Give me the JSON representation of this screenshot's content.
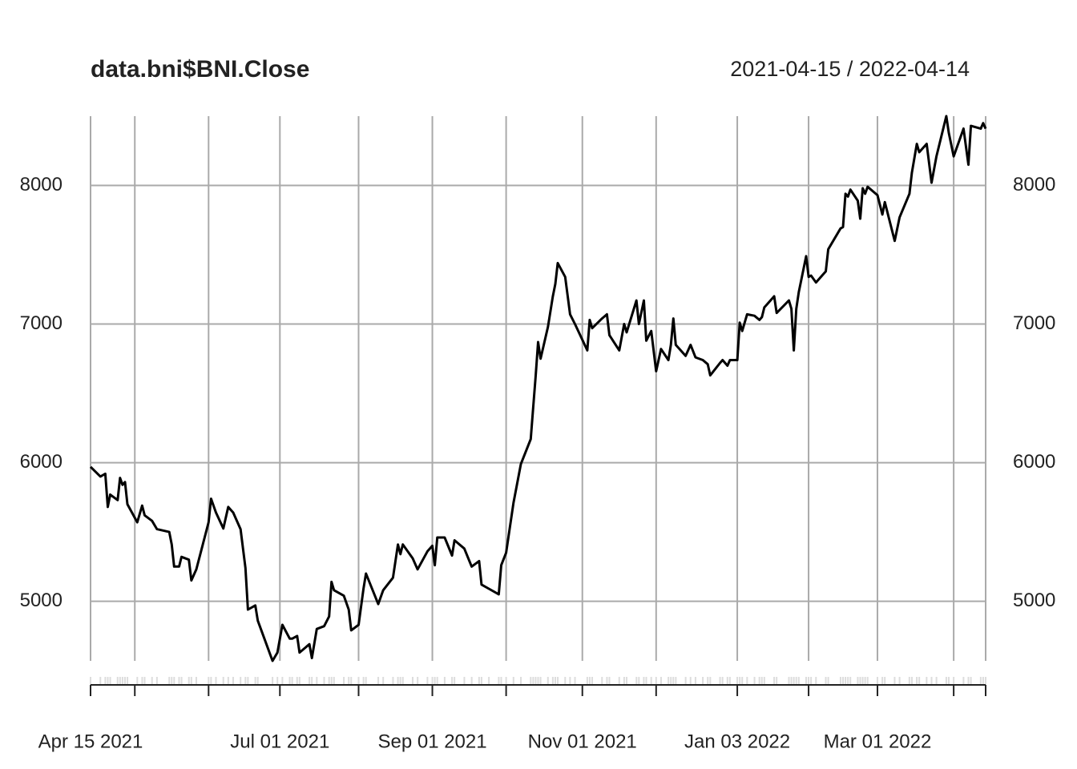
{
  "chart_data": {
    "type": "line",
    "title": "data.bni$BNI.Close",
    "subtitle": "2021-04-15 / 2022-04-14",
    "color": "#000000",
    "grid": true,
    "xlim": [
      "2021-04-15",
      "2022-04-14"
    ],
    "xticks": [
      {
        "value": "2021-04-15",
        "label": "Apr 15 2021"
      },
      {
        "value": "2021-07-01",
        "label": "Jul 01 2021"
      },
      {
        "value": "2021-09-01",
        "label": "Sep 01 2021"
      },
      {
        "value": "2021-11-01",
        "label": "Nov 01 2021"
      },
      {
        "value": "2022-01-03",
        "label": "Jan 03 2022"
      },
      {
        "value": "2022-03-01",
        "label": "Mar 01 2022"
      }
    ],
    "xgrid": [
      "2021-05-03",
      "2021-06-02",
      "2021-08-02",
      "2021-10-01",
      "2021-12-01",
      "2022-02-01",
      "2022-04-01",
      "2022-04-14"
    ],
    "ylim": [
      4570,
      8500
    ],
    "yticks": [
      5000,
      6000,
      7000,
      8000
    ],
    "x": [
      "2021-04-15",
      "2021-04-19",
      "2021-04-21",
      "2021-04-22",
      "2021-04-23",
      "2021-04-26",
      "2021-04-27",
      "2021-04-28",
      "2021-04-29",
      "2021-04-30",
      "2021-05-04",
      "2021-05-06",
      "2021-05-07",
      "2021-05-10",
      "2021-05-12",
      "2021-05-17",
      "2021-05-18",
      "2021-05-19",
      "2021-05-21",
      "2021-05-22",
      "2021-05-25",
      "2021-05-26",
      "2021-05-28",
      "2021-06-02",
      "2021-06-03",
      "2021-06-05",
      "2021-06-08",
      "2021-06-10",
      "2021-06-12",
      "2021-06-15",
      "2021-06-17",
      "2021-06-18",
      "2021-06-21",
      "2021-06-22",
      "2021-06-28",
      "2021-06-30",
      "2021-07-02",
      "2021-07-05",
      "2021-07-06",
      "2021-07-08",
      "2021-07-09",
      "2021-07-13",
      "2021-07-14",
      "2021-07-16",
      "2021-07-19",
      "2021-07-21",
      "2021-07-22",
      "2021-07-23",
      "2021-07-27",
      "2021-07-29",
      "2021-07-30",
      "2021-08-02",
      "2021-08-04",
      "2021-08-05",
      "2021-08-10",
      "2021-08-12",
      "2021-08-16",
      "2021-08-18",
      "2021-08-19",
      "2021-08-20",
      "2021-08-24",
      "2021-08-26",
      "2021-08-30",
      "2021-09-01",
      "2021-09-02",
      "2021-09-03",
      "2021-09-06",
      "2021-09-09",
      "2021-09-10",
      "2021-09-14",
      "2021-09-17",
      "2021-09-20",
      "2021-09-21",
      "2021-09-24",
      "2021-09-28",
      "2021-09-29",
      "2021-10-01",
      "2021-10-04",
      "2021-10-07",
      "2021-10-11",
      "2021-10-12",
      "2021-10-13",
      "2021-10-14",
      "2021-10-15",
      "2021-10-18",
      "2021-10-20",
      "2021-10-21",
      "2021-10-22",
      "2021-10-25",
      "2021-10-27",
      "2021-10-29",
      "2021-11-03",
      "2021-11-04",
      "2021-11-05",
      "2021-11-09",
      "2021-11-11",
      "2021-11-12",
      "2021-11-16",
      "2021-11-18",
      "2021-11-19",
      "2021-11-23",
      "2021-11-24",
      "2021-11-26",
      "2021-11-27",
      "2021-11-29",
      "2021-12-01",
      "2021-12-03",
      "2021-12-06",
      "2021-12-07",
      "2021-12-08",
      "2021-12-09",
      "2021-12-13",
      "2021-12-15",
      "2021-12-17",
      "2021-12-20",
      "2021-12-22",
      "2021-12-23",
      "2021-12-27",
      "2021-12-28",
      "2021-12-30",
      "2021-12-31",
      "2022-01-03",
      "2022-01-04",
      "2022-01-05",
      "2022-01-07",
      "2022-01-10",
      "2022-01-12",
      "2022-01-13",
      "2022-01-14",
      "2022-01-18",
      "2022-01-19",
      "2022-01-24",
      "2022-01-25",
      "2022-01-26",
      "2022-01-27",
      "2022-01-28",
      "2022-01-31",
      "2022-02-01",
      "2022-02-02",
      "2022-02-04",
      "2022-02-08",
      "2022-02-09",
      "2022-02-14",
      "2022-02-15",
      "2022-02-16",
      "2022-02-17",
      "2022-02-18",
      "2022-02-21",
      "2022-02-22",
      "2022-02-23",
      "2022-02-24",
      "2022-02-25",
      "2022-03-01",
      "2022-03-03",
      "2022-03-04",
      "2022-03-08",
      "2022-03-10",
      "2022-03-14",
      "2022-03-15",
      "2022-03-17",
      "2022-03-18",
      "2022-03-21",
      "2022-03-23",
      "2022-03-25",
      "2022-03-29",
      "2022-03-30",
      "2022-04-01",
      "2022-04-05",
      "2022-04-07",
      "2022-04-08",
      "2022-04-12",
      "2022-04-13",
      "2022-04-14"
    ],
    "values": [
      5970,
      5900,
      5920,
      5680,
      5770,
      5730,
      5890,
      5840,
      5860,
      5700,
      5570,
      5690,
      5620,
      5580,
      5520,
      5500,
      5410,
      5250,
      5250,
      5320,
      5300,
      5150,
      5230,
      5570,
      5740,
      5640,
      5525,
      5680,
      5640,
      5520,
      5240,
      4940,
      4970,
      4860,
      4570,
      4630,
      4830,
      4730,
      4730,
      4750,
      4630,
      4690,
      4590,
      4800,
      4820,
      4890,
      5140,
      5080,
      5040,
      4940,
      4790,
      4830,
      5090,
      5200,
      4980,
      5080,
      5170,
      5410,
      5340,
      5410,
      5310,
      5230,
      5360,
      5400,
      5260,
      5460,
      5460,
      5330,
      5440,
      5380,
      5250,
      5290,
      5120,
      5090,
      5050,
      5260,
      5350,
      5710,
      5990,
      6170,
      6400,
      6620,
      6870,
      6750,
      6980,
      7200,
      7290,
      7440,
      7340,
      7070,
      7000,
      6810,
      7030,
      6970,
      7040,
      7070,
      6920,
      6810,
      7000,
      6940,
      7170,
      7000,
      7170,
      6880,
      6950,
      6660,
      6820,
      6740,
      6850,
      7040,
      6850,
      6770,
      6850,
      6760,
      6740,
      6710,
      6630,
      6720,
      6740,
      6700,
      6740,
      6740,
      7010,
      6950,
      7070,
      7060,
      7030,
      7050,
      7120,
      7200,
      7080,
      7170,
      7110,
      6810,
      7110,
      7230,
      7490,
      7340,
      7350,
      7300,
      7380,
      7540,
      7690,
      7700,
      7940,
      7920,
      7970,
      7890,
      7760,
      7980,
      7940,
      7990,
      7930,
      7790,
      7880,
      7600,
      7770,
      7940,
      8090,
      8300,
      8240,
      8300,
      8020,
      8210,
      8500,
      8380,
      8210,
      8410,
      8150,
      8430,
      8410,
      8450,
      8410
    ]
  }
}
